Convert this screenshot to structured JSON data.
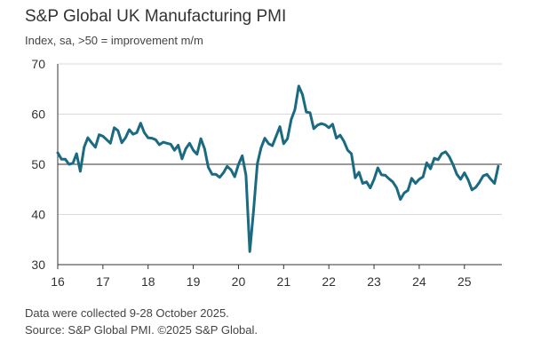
{
  "title": "S&P Global UK Manufacturing PMI",
  "subtitle": "Index, sa, >50 = improvement m/m",
  "notes": {
    "collected": "Data were collected 9-28 October 2025.",
    "source": "Source: S&P Global PMI. ©2025 S&P Global."
  },
  "colors": {
    "line": "#1a6a82",
    "axis": "#333333",
    "grid": "#d9d9d9",
    "reference": "#333333"
  },
  "chart_data": {
    "type": "line",
    "xlabel": "",
    "ylabel": "",
    "ylim": [
      30,
      70
    ],
    "yticks": [
      30,
      40,
      50,
      60,
      70
    ],
    "xlim": [
      2016.0,
      2025.83
    ],
    "xticks": [
      {
        "value": 2016,
        "label": "16"
      },
      {
        "value": 2017,
        "label": "17"
      },
      {
        "value": 2018,
        "label": "18"
      },
      {
        "value": 2019,
        "label": "19"
      },
      {
        "value": 2020,
        "label": "20"
      },
      {
        "value": 2021,
        "label": "21"
      },
      {
        "value": 2022,
        "label": "22"
      },
      {
        "value": 2023,
        "label": "23"
      },
      {
        "value": 2024,
        "label": "24"
      },
      {
        "value": 2025,
        "label": "25"
      }
    ],
    "reference_line": 50,
    "grid": "horizontal",
    "series": [
      {
        "x": [
          "2016-01",
          "2016-02",
          "2016-03",
          "2016-04",
          "2016-05",
          "2016-06",
          "2016-07",
          "2016-08",
          "2016-09",
          "2016-10",
          "2016-11",
          "2016-12",
          "2017-01",
          "2017-02",
          "2017-03",
          "2017-04",
          "2017-05",
          "2017-06",
          "2017-07",
          "2017-08",
          "2017-09",
          "2017-10",
          "2017-11",
          "2017-12",
          "2018-01",
          "2018-02",
          "2018-03",
          "2018-04",
          "2018-05",
          "2018-06",
          "2018-07",
          "2018-08",
          "2018-09",
          "2018-10",
          "2018-11",
          "2018-12",
          "2019-01",
          "2019-02",
          "2019-03",
          "2019-04",
          "2019-05",
          "2019-06",
          "2019-07",
          "2019-08",
          "2019-09",
          "2019-10",
          "2019-11",
          "2019-12",
          "2020-01",
          "2020-02",
          "2020-03",
          "2020-04",
          "2020-05",
          "2020-06",
          "2020-07",
          "2020-08",
          "2020-09",
          "2020-10",
          "2020-11",
          "2020-12",
          "2021-01",
          "2021-02",
          "2021-03",
          "2021-04",
          "2021-05",
          "2021-06",
          "2021-07",
          "2021-08",
          "2021-09",
          "2021-10",
          "2021-11",
          "2021-12",
          "2022-01",
          "2022-02",
          "2022-03",
          "2022-04",
          "2022-05",
          "2022-06",
          "2022-07",
          "2022-08",
          "2022-09",
          "2022-10",
          "2022-11",
          "2022-12",
          "2023-01",
          "2023-02",
          "2023-03",
          "2023-04",
          "2023-05",
          "2023-06",
          "2023-07",
          "2023-08",
          "2023-09",
          "2023-10",
          "2023-11",
          "2023-12",
          "2024-01",
          "2024-02",
          "2024-03",
          "2024-04",
          "2024-05",
          "2024-06",
          "2024-07",
          "2024-08",
          "2024-09",
          "2024-10",
          "2024-11",
          "2024-12",
          "2025-01",
          "2025-02",
          "2025-03",
          "2025-04",
          "2025-05",
          "2025-06",
          "2025-07",
          "2025-08",
          "2025-09",
          "2025-10"
        ],
        "values": [
          52.3,
          51.0,
          51.0,
          50.0,
          50.2,
          52.1,
          48.6,
          53.4,
          55.3,
          54.3,
          53.4,
          55.9,
          55.6,
          54.9,
          54.2,
          57.3,
          56.7,
          54.3,
          55.3,
          56.9,
          56.0,
          56.3,
          58.2,
          56.3,
          55.3,
          55.2,
          54.9,
          53.9,
          54.4,
          54.2,
          54.0,
          52.8,
          53.8,
          51.1,
          53.1,
          54.2,
          52.8,
          52.0,
          55.1,
          53.1,
          49.4,
          48.0,
          48.0,
          47.4,
          48.3,
          49.6,
          48.9,
          47.5,
          50.0,
          51.7,
          47.8,
          32.6,
          40.7,
          50.1,
          53.3,
          55.2,
          54.1,
          53.7,
          55.6,
          57.5,
          54.1,
          55.1,
          58.9,
          60.9,
          65.6,
          63.9,
          60.4,
          60.3,
          57.1,
          57.8,
          58.1,
          57.9,
          57.3,
          58.0,
          55.2,
          55.8,
          54.6,
          52.8,
          52.1,
          47.3,
          48.4,
          46.2,
          46.5,
          45.3,
          47.0,
          49.3,
          47.9,
          47.8,
          47.1,
          46.5,
          45.3,
          43.0,
          44.3,
          44.8,
          47.2,
          46.2,
          47.0,
          47.5,
          50.3,
          49.1,
          51.2,
          50.9,
          52.1,
          52.5,
          51.5,
          49.9,
          48.0,
          47.0,
          48.3,
          46.9,
          44.9,
          45.4,
          46.4,
          47.7,
          48.0,
          47.0,
          46.2,
          49.6
        ]
      }
    ]
  }
}
